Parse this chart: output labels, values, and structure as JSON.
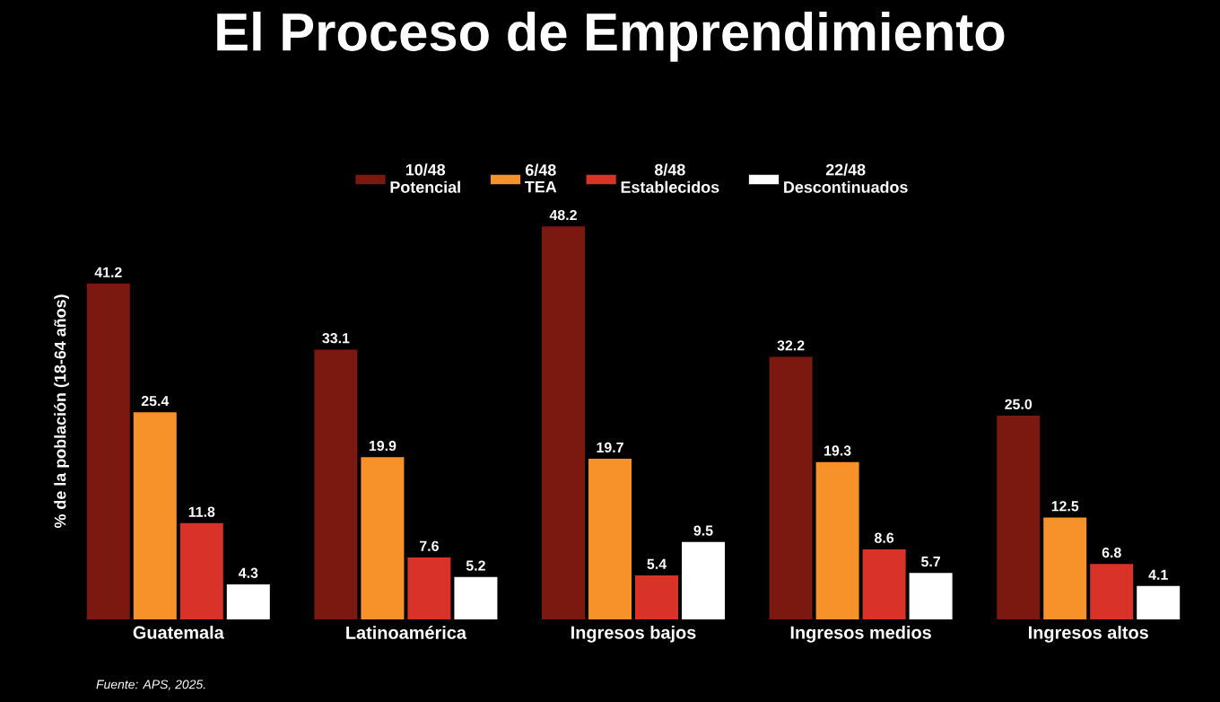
{
  "chart_data": {
    "type": "bar",
    "title": "El Proceso de Emprendimiento",
    "ylabel": "% de la población (18-64 años)",
    "categories": [
      "Guatemala",
      "Latinoamérica",
      "Ingresos bajos",
      "Ingresos medios",
      "Ingresos altos"
    ],
    "series": [
      {
        "name": "Potencial",
        "color": "#7b1810",
        "values": [
          41.2,
          33.1,
          48.2,
          32.2,
          25.0
        ],
        "value_labels": [
          "41.2",
          "33.1",
          "48.2",
          "32.2",
          "25.0"
        ]
      },
      {
        "name": "TEA",
        "color": "#f7922a",
        "values": [
          25.4,
          19.9,
          19.7,
          19.3,
          12.5
        ],
        "value_labels": [
          "25.4",
          "19.9",
          "19.7",
          "19.3",
          "12.5"
        ]
      },
      {
        "name": "Establecidos",
        "color": "#d93228",
        "values": [
          11.8,
          7.6,
          5.4,
          8.6,
          6.8
        ],
        "value_labels": [
          "11.8",
          "7.6",
          "5.4",
          "8.6",
          "6.8"
        ]
      },
      {
        "name": "Descontinuados",
        "color": "#ffffff",
        "values": [
          4.3,
          5.2,
          9.5,
          5.7,
          4.1
        ],
        "value_labels": [
          "4.3",
          "5.2",
          "9.5",
          "5.7",
          "4.1"
        ]
      }
    ],
    "annotations": [
      "10/48",
      "6/48",
      "8/48",
      "22/48",
      "Fuente: APS, 2025."
    ],
    "legend": "top"
  }
}
